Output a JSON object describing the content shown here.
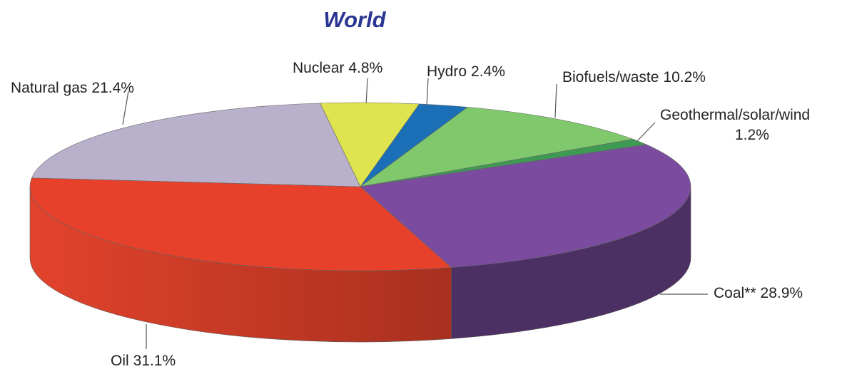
{
  "chart_data": {
    "type": "pie",
    "title": "World",
    "categories": [
      "Nuclear",
      "Hydro",
      "Biofuels/waste",
      "Geothermal/solar/wind",
      "Coal**",
      "Oil",
      "Natural gas"
    ],
    "values": [
      4.8,
      2.4,
      10.2,
      1.2,
      28.9,
      31.1,
      21.4
    ],
    "value_labels": [
      "4.8%",
      "2.4%",
      "10.2%",
      "1.2%",
      "28.9%",
      "31.1%",
      "21.4%"
    ],
    "colors": [
      "#dfe44e",
      "#1b6fb7",
      "#80c86c",
      "#3d9a52",
      "#7a4b9f",
      "#e8412b",
      "#b9b1cc"
    ]
  }
}
